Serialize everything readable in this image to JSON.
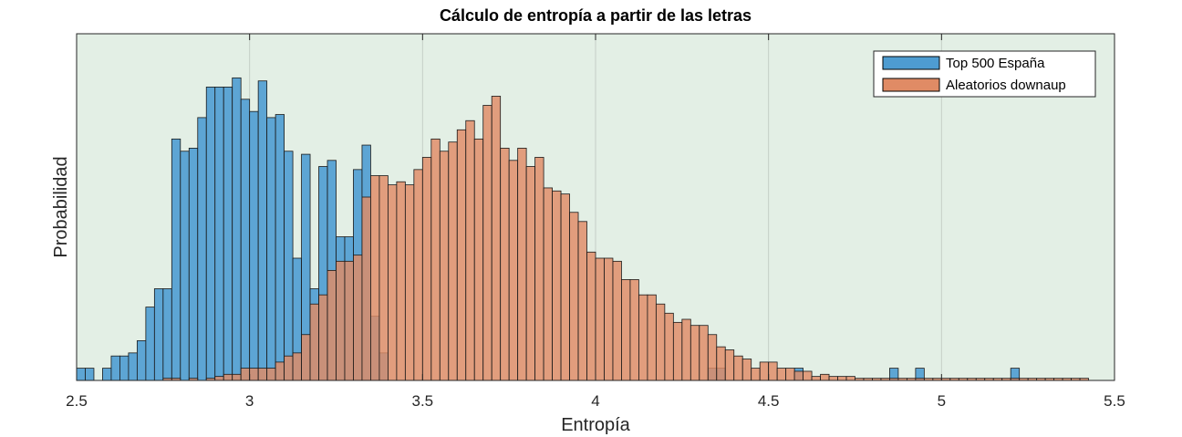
{
  "chart_data": {
    "type": "bar",
    "title": "Cálculo de entropía a partir de las letras",
    "xlabel": "Entropía",
    "ylabel": "Probabilidad",
    "xlim": [
      2.5,
      5.5
    ],
    "ylim": [
      0,
      1
    ],
    "x_ticks": [
      "2.5",
      "3",
      "3.5",
      "4",
      "4.5",
      "5",
      "5.5"
    ],
    "x_tick_values": [
      2.5,
      3.0,
      3.5,
      4.0,
      4.5,
      5.0,
      5.5
    ],
    "grid": true,
    "legend_position": "top-right",
    "bin_width": 0.025,
    "background_color": "#e3efe5",
    "series": [
      {
        "name": "Top 500 España",
        "color": "#4e9cd1",
        "bin_start": 2.5,
        "values": [
          0.04,
          0.04,
          0,
          0.04,
          0.08,
          0.08,
          0.09,
          0.13,
          0.24,
          0.3,
          0.3,
          0.79,
          0.75,
          0.76,
          0.86,
          0.96,
          0.96,
          0.96,
          0.99,
          0.92,
          0.88,
          0.98,
          0.86,
          0.87,
          0.75,
          0.4,
          0.74,
          0.3,
          0.7,
          0.72,
          0.47,
          0.47,
          0.69,
          0.77,
          0.21,
          0.09
        ]
      },
      {
        "name": "Aleatorios downaup",
        "color": "#e08b65",
        "bin_start": 2.75,
        "values": [
          0.007,
          0.007,
          0,
          0.007,
          0,
          0.007,
          0.013,
          0.02,
          0.02,
          0.04,
          0.04,
          0.04,
          0.04,
          0.06,
          0.08,
          0.09,
          0.15,
          0.25,
          0.28,
          0.36,
          0.39,
          0.39,
          0.41,
          0.6,
          0.67,
          0.67,
          0.64,
          0.65,
          0.64,
          0.69,
          0.73,
          0.79,
          0.75,
          0.78,
          0.82,
          0.85,
          0.79,
          0.9,
          0.93,
          0.76,
          0.72,
          0.76,
          0.7,
          0.73,
          0.63,
          0.62,
          0.61,
          0.55,
          0.52,
          0.42,
          0.4,
          0.4,
          0.39,
          0.33,
          0.33,
          0.28,
          0.28,
          0.25,
          0.22,
          0.19,
          0.2,
          0.18,
          0.18,
          0.15,
          0.11,
          0.1,
          0.08,
          0.07,
          0.04,
          0.06,
          0.06,
          0.04,
          0.04,
          0.03,
          0.03,
          0.013,
          0.02,
          0.013,
          0.013,
          0.013,
          0.007,
          0.007,
          0.007,
          0.007,
          0.007,
          0.007,
          0.007,
          0.007,
          0.007,
          0.007,
          0.007,
          0.007,
          0.007,
          0.007,
          0.007,
          0.007,
          0.007,
          0.007,
          0.007,
          0.007,
          0.007,
          0.007,
          0.007,
          0.007,
          0.007,
          0.007,
          0.007
        ]
      }
    ],
    "outliers": {
      "series": "Top 500 España",
      "x": [
        4.325,
        4.35,
        4.575,
        4.85,
        4.925,
        5.2
      ],
      "values": [
        0.04,
        0.04,
        0.04,
        0.04,
        0.04,
        0.04
      ]
    }
  }
}
